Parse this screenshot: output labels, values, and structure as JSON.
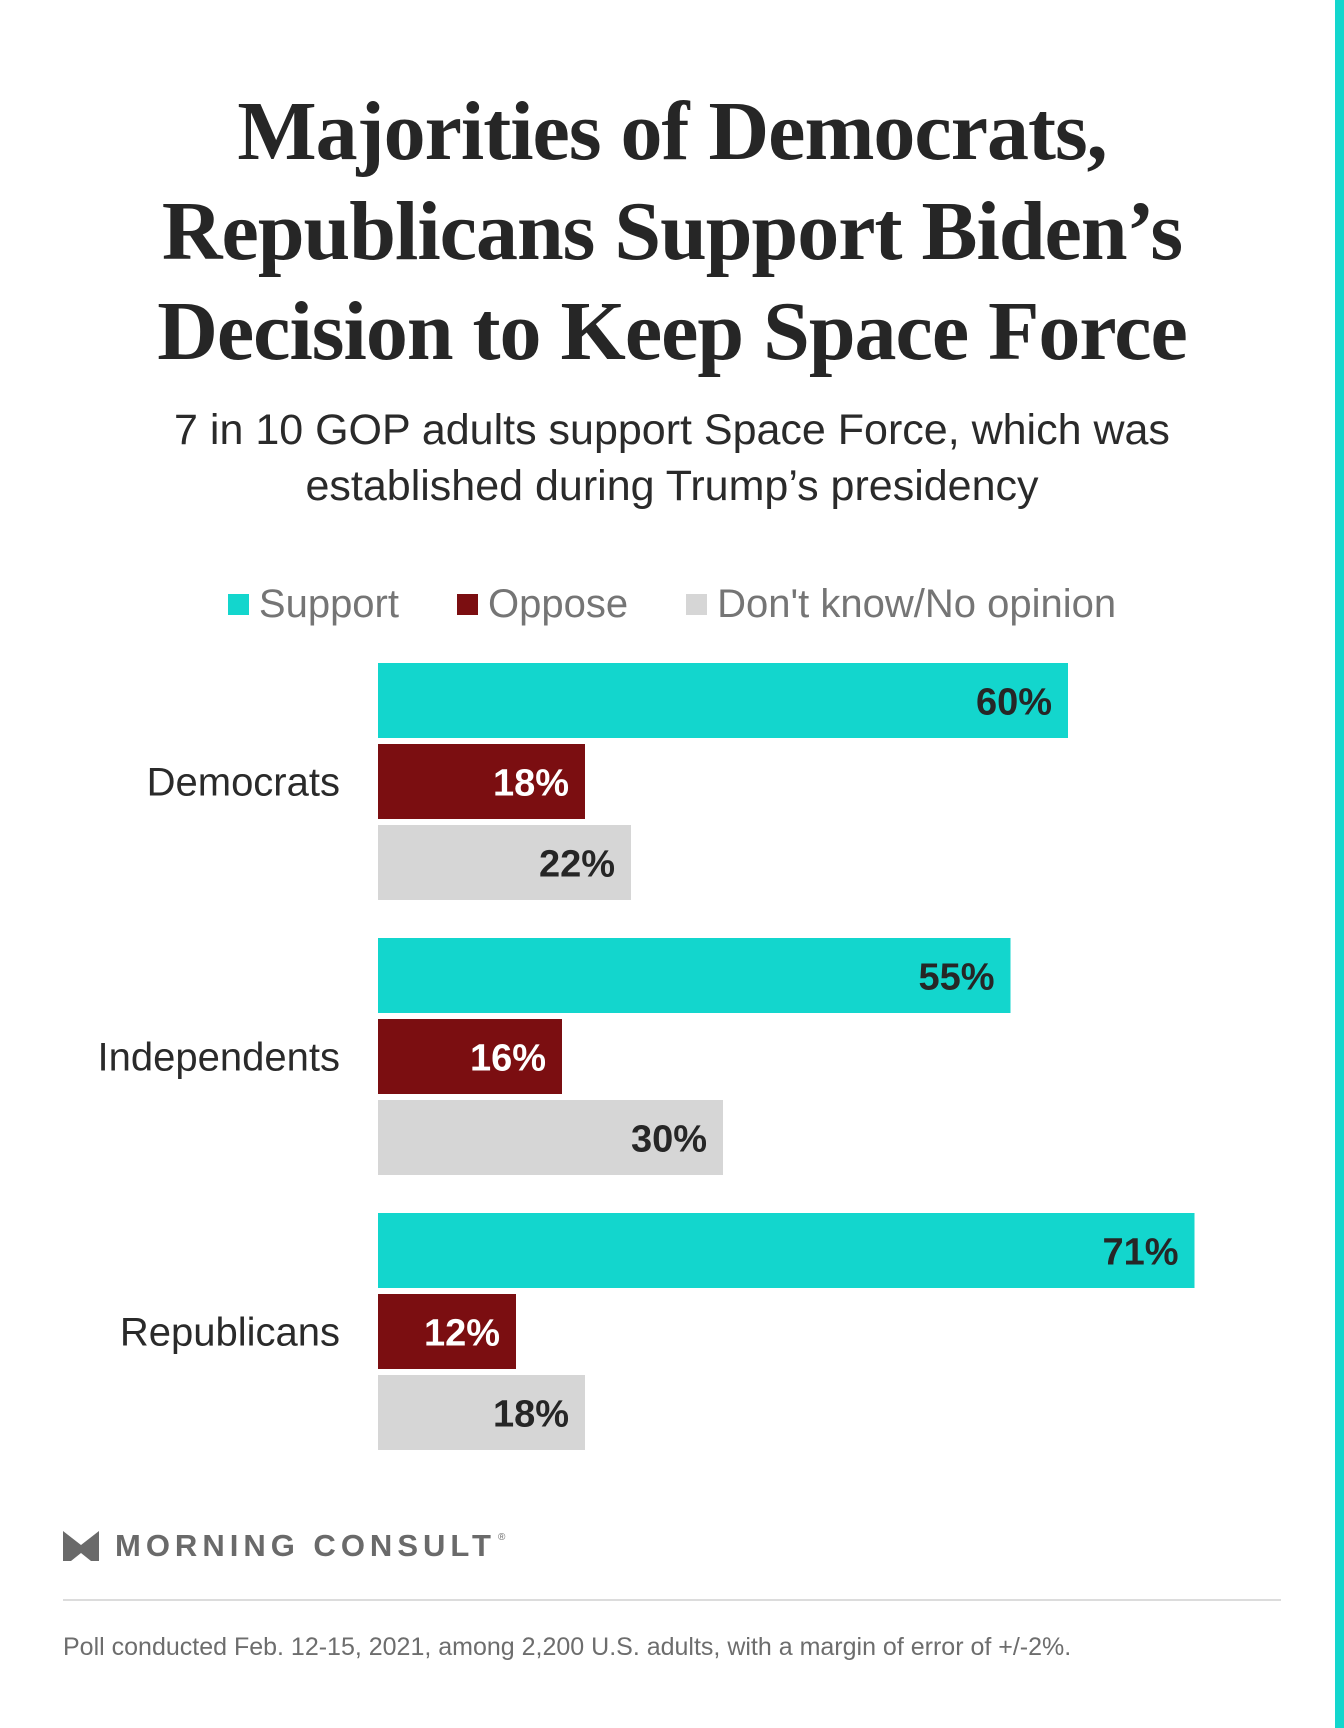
{
  "title": "Majorities of Democrats, Republicans Support Biden’s Decision to Keep Space Force",
  "subtitle": "7 in 10 GOP adults support Space Force, which was established during Trump’s presidency",
  "colors": {
    "support": "#13d6cd",
    "oppose": "#7b0e11",
    "no_opinion": "#d6d6d6",
    "accent": "#13d6cd"
  },
  "chart_data": {
    "type": "bar",
    "orientation": "horizontal",
    "title": "Majorities of Democrats, Republicans Support Biden’s Decision to Keep Space Force",
    "xlabel": "",
    "ylabel": "",
    "xlim": [
      0,
      80
    ],
    "grid": false,
    "legend_position": "top",
    "categories": [
      "Democrats",
      "Independents",
      "Republicans"
    ],
    "series": [
      {
        "name": "Support",
        "values": [
          60,
          55,
          71
        ],
        "labels": [
          "60%",
          "55%",
          "71%"
        ]
      },
      {
        "name": "Oppose",
        "values": [
          18,
          16,
          12
        ],
        "labels": [
          "18%",
          "16%",
          "12%"
        ]
      },
      {
        "name": "Don't know/No opinion",
        "values": [
          22,
          30,
          18
        ],
        "labels": [
          "22%",
          "30%",
          "18%"
        ]
      }
    ]
  },
  "brand": {
    "name": "MORNING CONSULT",
    "logo_icon": "morning-consult-m-icon",
    "registered": "®"
  },
  "footnote": "Poll conducted Feb. 12-15, 2021, among 2,200 U.S. adults, with a margin of error of +/-2%."
}
